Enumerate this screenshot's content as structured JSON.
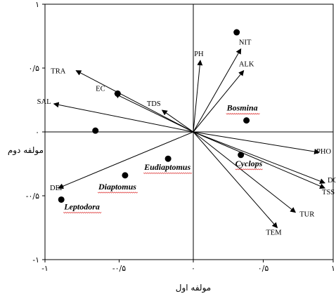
{
  "chart_data": {
    "type": "scatter",
    "title": "",
    "xlabel": "مولفه اول",
    "ylabel": "مولفه دوم",
    "xlim": [
      -1,
      1
    ],
    "ylim": [
      -1,
      1
    ],
    "x_ticks": [
      {
        "value": -1,
        "label": "-۱"
      },
      {
        "value": -0.5,
        "label": "-۰/۵"
      },
      {
        "value": 0,
        "label": "۰"
      },
      {
        "value": 0.5,
        "label": "۰/۵"
      },
      {
        "value": 1,
        "label": "۱"
      }
    ],
    "y_ticks": [
      {
        "value": 1,
        "label": "۱"
      },
      {
        "value": 0.5,
        "label": "۰/۵"
      },
      {
        "value": 0,
        "label": "۰"
      },
      {
        "value": -0.5,
        "label": "-۰/۵"
      },
      {
        "value": -1,
        "label": "-۱"
      }
    ],
    "environmental_vectors": [
      {
        "name": "PH",
        "x": 0.05,
        "y": 0.56
      },
      {
        "name": "NIT",
        "x": 0.34,
        "y": 0.65
      },
      {
        "name": "ALK",
        "x": 0.36,
        "y": 0.48
      },
      {
        "name": "TRA",
        "x": -0.79,
        "y": 0.48
      },
      {
        "name": "EC",
        "x": -0.53,
        "y": 0.3
      },
      {
        "name": "TDS",
        "x": -0.21,
        "y": 0.17
      },
      {
        "name": "SAL",
        "x": -0.94,
        "y": 0.22
      },
      {
        "name": "PHO",
        "x": 0.9,
        "y": -0.16
      },
      {
        "name": "DO",
        "x": 0.94,
        "y": -0.4
      },
      {
        "name": "TSS",
        "x": 0.94,
        "y": -0.44
      },
      {
        "name": "TUR",
        "x": 0.73,
        "y": -0.63
      },
      {
        "name": "TEM",
        "x": 0.6,
        "y": -0.75
      },
      {
        "name": "DEP",
        "x": -0.91,
        "y": -0.44
      }
    ],
    "species_points": [
      {
        "name": "",
        "x": 0.31,
        "y": 0.78
      },
      {
        "name": "Bosmina",
        "x": 0.38,
        "y": 0.09
      },
      {
        "name": "Cyclops",
        "x": 0.34,
        "y": -0.18
      },
      {
        "name": "Eudiaptomus",
        "x": -0.17,
        "y": -0.21
      },
      {
        "name": "Diaptomus",
        "x": -0.46,
        "y": -0.34
      },
      {
        "name": "Leptodora",
        "x": -0.89,
        "y": -0.53
      },
      {
        "name": "",
        "x": -0.51,
        "y": 0.3
      },
      {
        "name": "",
        "x": -0.66,
        "y": 0.01
      }
    ]
  }
}
